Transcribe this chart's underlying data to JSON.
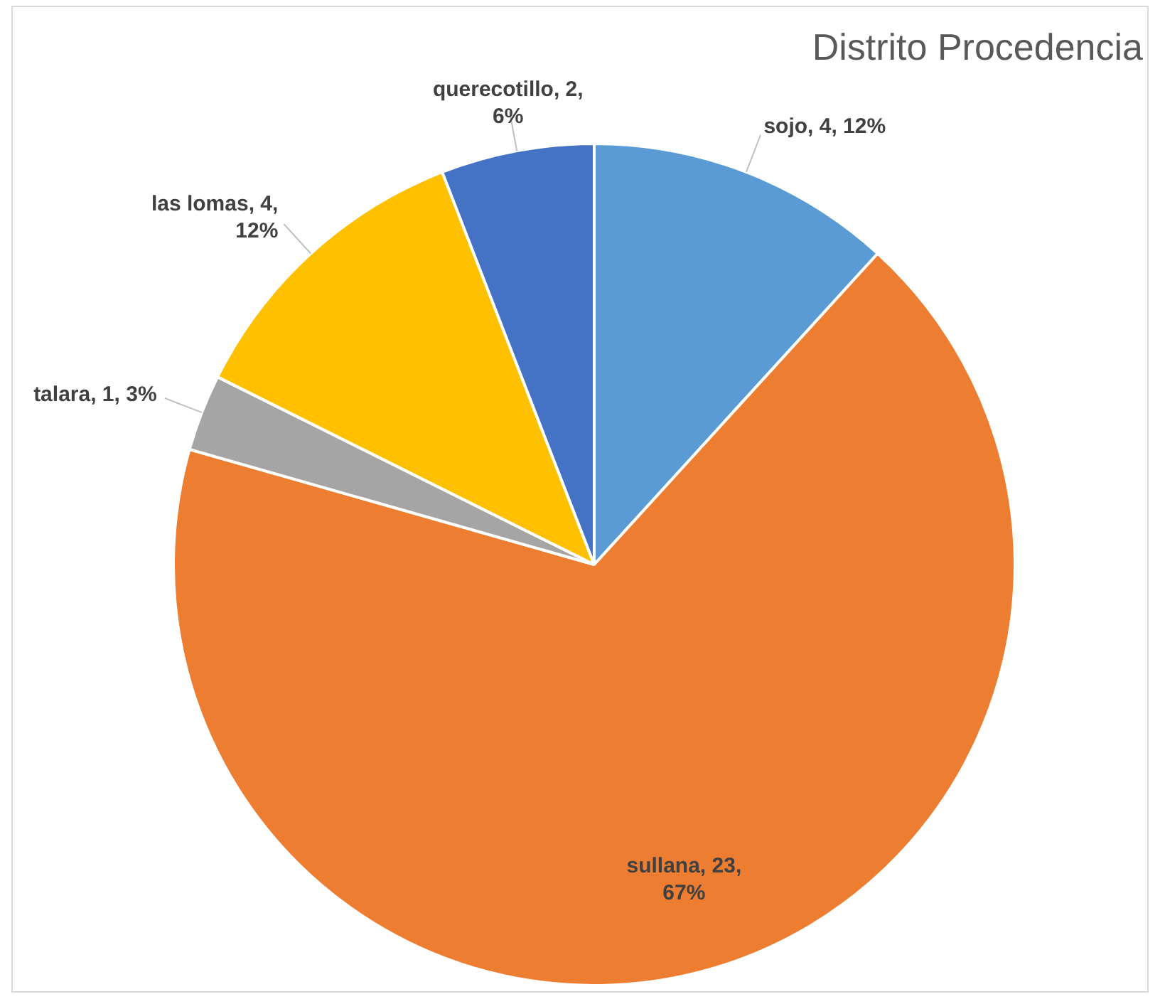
{
  "chart_data": {
    "type": "pie",
    "title": "Distrito Procedencia",
    "categories": [
      "sojo",
      "sullana",
      "talara",
      "las lomas",
      "querecotillo"
    ],
    "values": [
      4,
      23,
      1,
      4,
      2
    ],
    "colors": [
      "#5b9bd5",
      "#ed7d31",
      "#a5a5a5",
      "#ffc000",
      "#4472c4"
    ],
    "value_labels": [
      "4, 12%",
      "23, 67%",
      "1, 3%",
      "4, 12%",
      "2, 6%"
    ],
    "legend": false
  }
}
